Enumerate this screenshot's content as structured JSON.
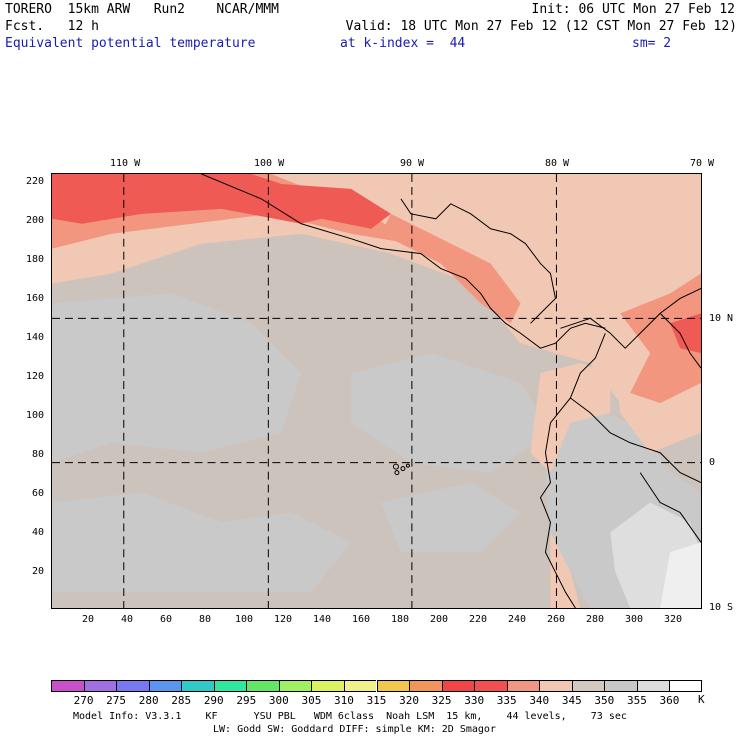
{
  "header": {
    "line1_left": "TORERO  15km ARW   Run2    NCAR/MMM",
    "line1_right": "Init: 06 UTC Mon 27 Feb 12",
    "line2_left": "Fcst.   12 h",
    "line2_right": "Valid: 18 UTC Mon 27 Feb 12 (12 CST Mon 27 Feb 12)",
    "field": "Equivalent potential temperature",
    "level": "at k-index =  44",
    "smooth": "sm= 2"
  },
  "map": {
    "top_lon_labels": [
      "110 W",
      "100 W",
      "90 W",
      "80 W",
      "70 W"
    ],
    "right_lat_labels": [
      "10 N",
      "0",
      "10 S"
    ],
    "y_ticks": [
      "220",
      "200",
      "180",
      "160",
      "140",
      "120",
      "100",
      "80",
      "60",
      "40",
      "20"
    ],
    "x_ticks": [
      "20",
      "40",
      "60",
      "80",
      "100",
      "120",
      "140",
      "160",
      "180",
      "200",
      "220",
      "240",
      "260",
      "280",
      "300",
      "320"
    ]
  },
  "colorbar": {
    "colors": [
      "#c850c8",
      "#a070e0",
      "#7878f0",
      "#5a96f0",
      "#32c8c8",
      "#32e6a0",
      "#64e664",
      "#a0f064",
      "#dcf064",
      "#f0f08c",
      "#f0c850",
      "#f0965a",
      "#f04646",
      "#f05050",
      "#f09682",
      "#f0c8b4",
      "#d2c8c0",
      "#c8c8c8",
      "#dcdcdc",
      "#ffffff"
    ],
    "labels": [
      "270",
      "275",
      "280",
      "285",
      "290",
      "295",
      "300",
      "305",
      "310",
      "315",
      "320",
      "325",
      "330",
      "335",
      "340",
      "345",
      "350",
      "355",
      "360"
    ],
    "unit": "K"
  },
  "footer": {
    "line1": "Model Info: V3.3.1    KF      YSU PBL   WDM 6class  Noah LSM  15 km,    44 levels,    73 sec",
    "line2": "LW: Godd SW: Goddard DIFF: simple KM: 2D Smagor"
  },
  "colors": {
    "ocean_base": "#cdc3bd",
    "grey_patch": "#c9c9c9",
    "tan_warm": "#f1c8b3",
    "salmon": "#f2967f",
    "red": "#ef5a55"
  }
}
